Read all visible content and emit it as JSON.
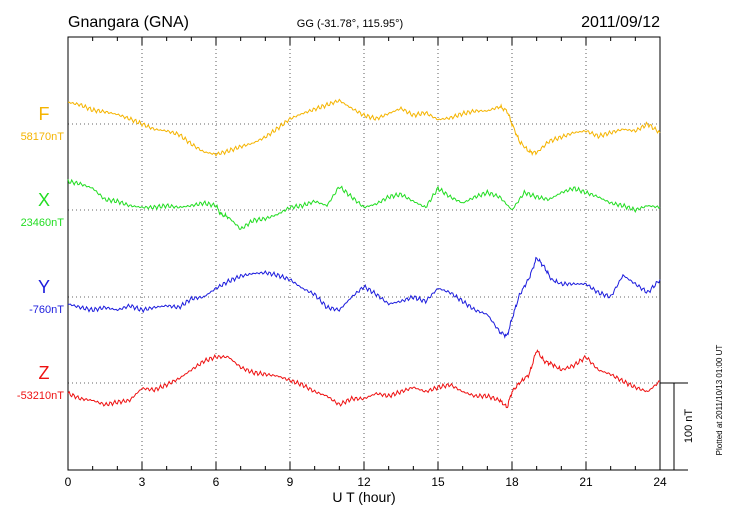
{
  "chart_data": {
    "type": "line",
    "station": "Gnangara (GNA)",
    "coords": "GG (-31.78°, 115.95°)",
    "date": "2011/09/12",
    "xlabel": "U T (hour)",
    "xlim": [
      0,
      24
    ],
    "xticks": [
      "0",
      "3",
      "6",
      "9",
      "12",
      "15",
      "18",
      "21",
      "24"
    ],
    "scale_label": "100 nT",
    "plotted_note": "Plotted at 2011/10/13 01:00 UT",
    "grid": true,
    "series": [
      {
        "name": "F",
        "base_label": "58170nT",
        "color": "#f5b400",
        "x": [
          0,
          0.5,
          1,
          1.5,
          2,
          2.5,
          3,
          3.5,
          4,
          4.5,
          5,
          5.5,
          6,
          6.5,
          7,
          7.5,
          8,
          8.5,
          9,
          9.5,
          10,
          10.5,
          11,
          11.5,
          12,
          12.5,
          13,
          13.5,
          14,
          14.5,
          15,
          15.5,
          16,
          16.5,
          17,
          17.5,
          17.8,
          18,
          18.3,
          18.7,
          19,
          19.5,
          20,
          20.5,
          21,
          21.5,
          22,
          22.5,
          23,
          23.5,
          24
        ],
        "values": [
          25,
          22,
          16,
          14,
          11,
          6,
          0,
          -6,
          -8,
          -12,
          -23,
          -32,
          -35,
          -31,
          -26,
          -22,
          -15,
          -5,
          6,
          12,
          17,
          22,
          27,
          18,
          10,
          6,
          12,
          18,
          10,
          13,
          5,
          7,
          12,
          15,
          15,
          20,
          15,
          0,
          -20,
          -32,
          -33,
          -20,
          -15,
          -10,
          -8,
          -14,
          -10,
          -6,
          -8,
          0,
          -10
        ]
      },
      {
        "name": "X",
        "base_label": "23460nT",
        "color": "#22dd22",
        "x": [
          0,
          0.5,
          1,
          1.5,
          2,
          2.5,
          3,
          3.5,
          4,
          4.5,
          5,
          5.5,
          6,
          6.2,
          6.5,
          7,
          7.5,
          8,
          8.5,
          9,
          9.5,
          10,
          10.5,
          11,
          11.5,
          12,
          12.5,
          13,
          13.5,
          14,
          14.5,
          15,
          15.5,
          16,
          16.5,
          17,
          17.5,
          18,
          18.5,
          19,
          19.5,
          20,
          20.5,
          21,
          21.5,
          22,
          22.5,
          23,
          23.5,
          24
        ],
        "values": [
          33,
          30,
          25,
          12,
          10,
          5,
          3,
          3,
          5,
          3,
          5,
          8,
          5,
          -5,
          -8,
          -22,
          -12,
          -10,
          -5,
          3,
          5,
          10,
          5,
          27,
          15,
          3,
          7,
          15,
          18,
          10,
          3,
          25,
          15,
          8,
          15,
          20,
          15,
          0,
          20,
          15,
          12,
          20,
          25,
          20,
          15,
          8,
          5,
          0,
          5,
          3
        ]
      },
      {
        "name": "Y",
        "base_label": "-760nT",
        "color": "#1c1cdd",
        "x": [
          0,
          0.5,
          1,
          1.5,
          2,
          2.5,
          3,
          3.5,
          4,
          4.5,
          5,
          5.5,
          6,
          6.5,
          7,
          7.5,
          8,
          8.5,
          9,
          9.5,
          10,
          10.5,
          11,
          11.5,
          12,
          12.5,
          13,
          13.5,
          14,
          14.5,
          15,
          15.5,
          16,
          16.5,
          17,
          17.5,
          17.8,
          18,
          18.3,
          18.7,
          19,
          19.3,
          19.6,
          20,
          20.5,
          21,
          21.5,
          22,
          22.5,
          23,
          23.5,
          24
        ],
        "values": [
          -8,
          -12,
          -15,
          -12,
          -15,
          -10,
          -15,
          -12,
          -10,
          -12,
          -2,
          0,
          10,
          18,
          24,
          27,
          28,
          25,
          20,
          10,
          3,
          -12,
          -15,
          0,
          12,
          3,
          -8,
          -5,
          0,
          -5,
          10,
          5,
          -5,
          -15,
          -20,
          -40,
          -45,
          -25,
          2,
          22,
          45,
          35,
          20,
          15,
          15,
          15,
          5,
          0,
          25,
          15,
          5,
          20
        ]
      },
      {
        "name": "Z",
        "base_label": "-53210nT",
        "color": "#ee1111",
        "x": [
          0,
          0.5,
          1,
          1.5,
          2,
          2.5,
          3,
          3.5,
          4,
          4.5,
          5,
          5.5,
          6,
          6.5,
          7,
          7.5,
          8,
          8.5,
          9,
          9.5,
          10,
          10.5,
          11,
          11.5,
          12,
          12.5,
          13,
          13.5,
          14,
          14.5,
          15,
          15.5,
          16,
          16.5,
          17,
          17.5,
          17.8,
          18,
          18.3,
          18.7,
          19,
          19.3,
          19.6,
          20,
          20.5,
          21,
          21.5,
          22,
          22.5,
          23,
          23.5,
          24
        ],
        "values": [
          -12,
          -18,
          -20,
          -25,
          -22,
          -20,
          -6,
          -8,
          -2,
          5,
          15,
          25,
          30,
          30,
          18,
          12,
          10,
          8,
          3,
          -2,
          -10,
          -15,
          -25,
          -18,
          -18,
          -12,
          -15,
          -10,
          -5,
          -10,
          -5,
          -2,
          -10,
          -15,
          -15,
          -20,
          -28,
          -10,
          0,
          10,
          38,
          25,
          22,
          15,
          20,
          30,
          15,
          10,
          2,
          -5,
          -10,
          2
        ]
      }
    ]
  }
}
